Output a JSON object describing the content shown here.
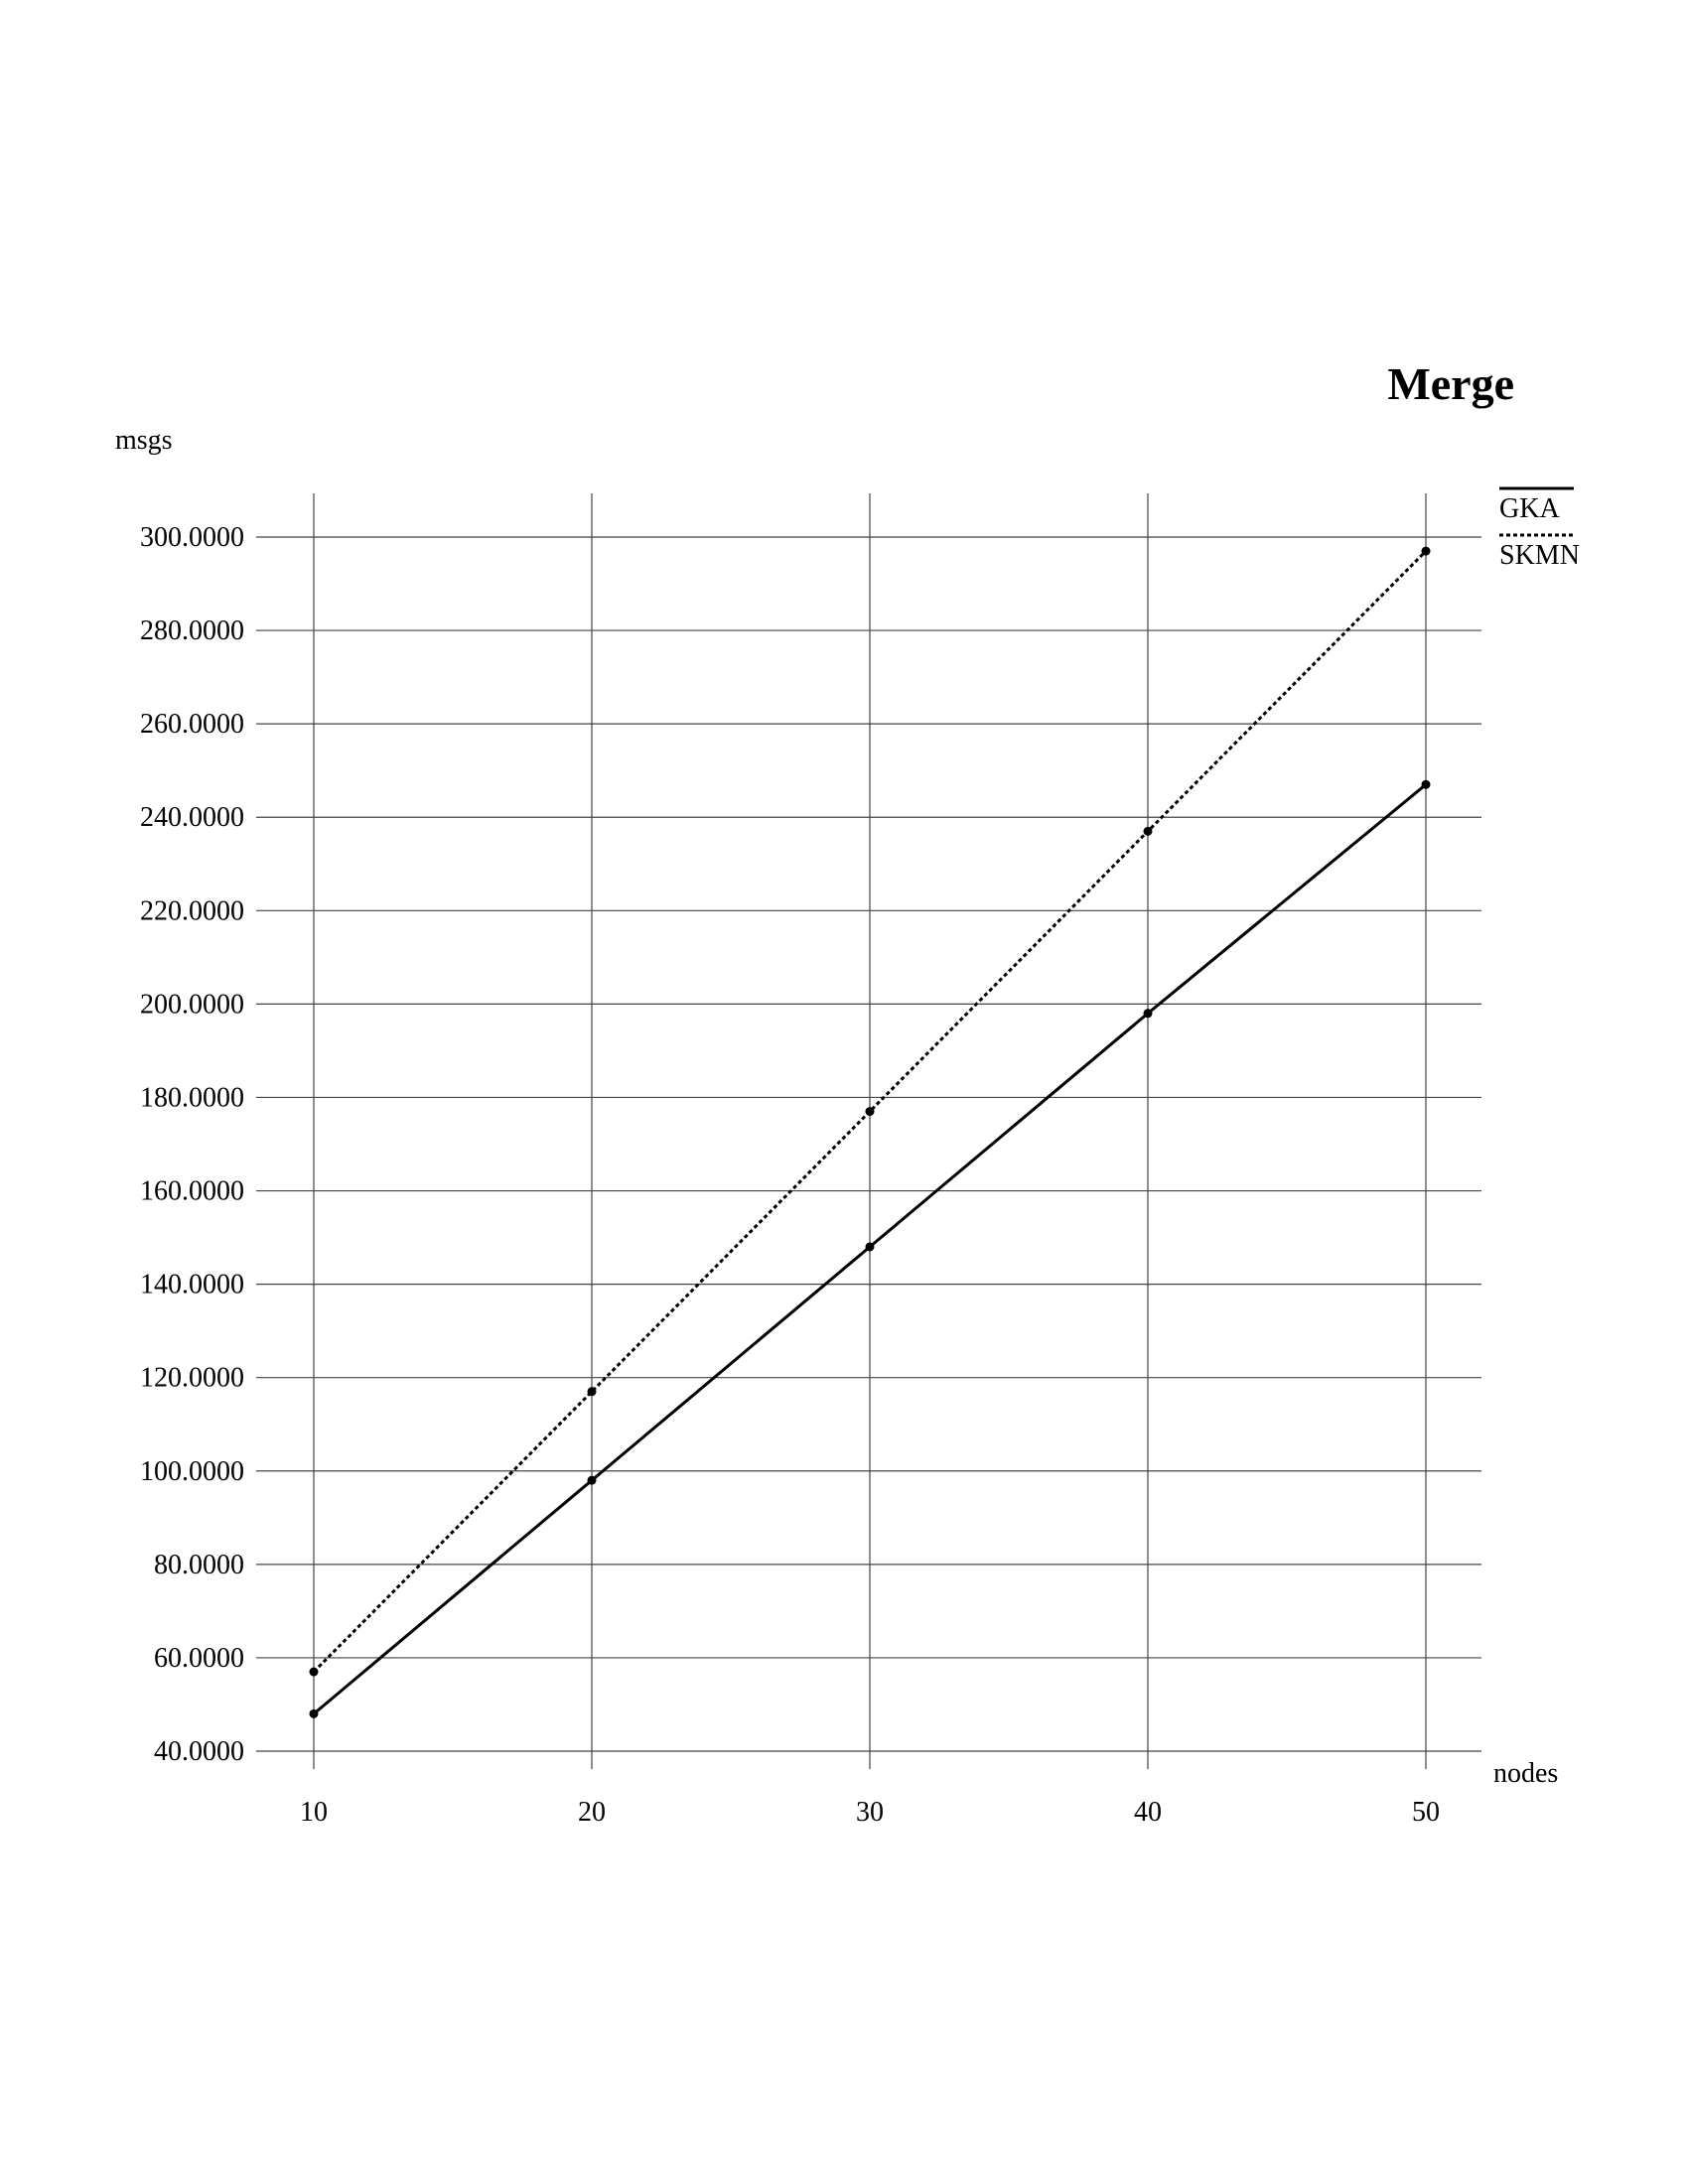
{
  "chart_data": {
    "type": "line",
    "title": "Merge",
    "xlabel": "nodes",
    "ylabel": "msgs",
    "x": [
      10,
      20,
      30,
      40,
      50
    ],
    "xticks": [
      "10",
      "20",
      "30",
      "40",
      "50"
    ],
    "ylim": [
      40,
      300
    ],
    "yticks": [
      "40.0000",
      "60.0000",
      "80.0000",
      "100.0000",
      "120.0000",
      "140.0000",
      "160.0000",
      "180.0000",
      "200.0000",
      "220.0000",
      "240.0000",
      "260.0000",
      "280.0000",
      "300.0000"
    ],
    "grid": true,
    "legend_position": "top-right",
    "series": [
      {
        "name": "GKA",
        "style": "solid",
        "color": "#000000",
        "values": [
          48,
          98,
          148,
          198,
          247
        ]
      },
      {
        "name": "SKMN",
        "style": "dotted",
        "color": "#000000",
        "values": [
          57,
          117,
          177,
          237,
          297
        ]
      }
    ]
  }
}
